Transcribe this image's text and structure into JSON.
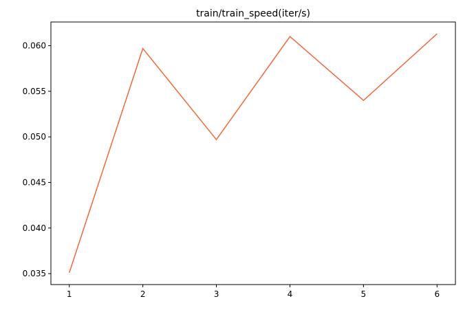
{
  "chart_data": {
    "type": "line",
    "title": "train/train_speed(iter/s)",
    "xlabel": "",
    "ylabel": "",
    "x": [
      1,
      2,
      3,
      4,
      5,
      6
    ],
    "series": [
      {
        "values": [
          0.0351,
          0.0597,
          0.0497,
          0.061,
          0.054,
          0.0613
        ],
        "color": "#f07046"
      }
    ],
    "xlim": [
      0.75,
      6.25
    ],
    "ylim": [
      0.0338,
      0.0626
    ],
    "xticks": [
      1,
      2,
      3,
      4,
      5,
      6
    ],
    "yticks": [
      0.035,
      0.04,
      0.045,
      0.05,
      0.055,
      0.06
    ],
    "ytick_labels": [
      "0.035",
      "0.040",
      "0.045",
      "0.050",
      "0.055",
      "0.060"
    ],
    "grid": false,
    "legend": "none"
  }
}
